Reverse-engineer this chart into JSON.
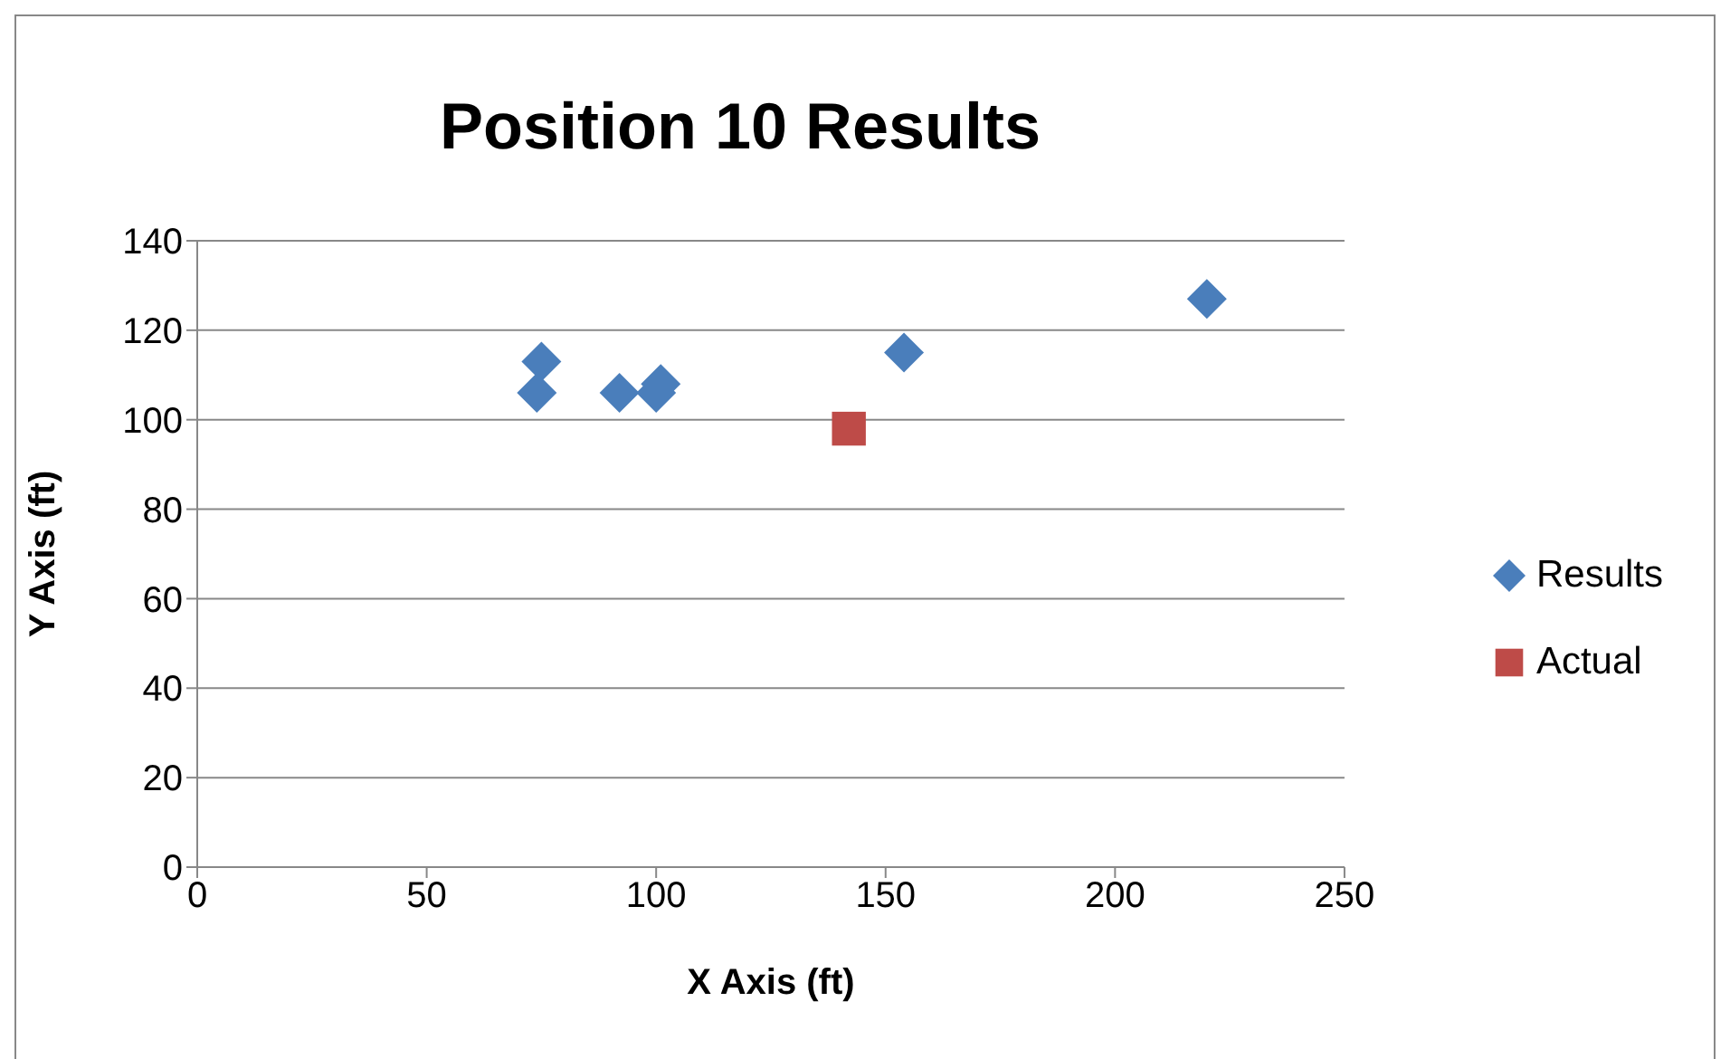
{
  "chart_data": {
    "type": "scatter",
    "title": "Position 10 Results",
    "xlabel": "X Axis (ft)",
    "ylabel": "Y Axis (ft)",
    "xlim": [
      0,
      250
    ],
    "xticks": [
      0,
      50,
      100,
      150,
      200,
      250
    ],
    "ylim": [
      0,
      140
    ],
    "yticks": [
      0,
      20,
      40,
      60,
      80,
      100,
      120,
      140
    ],
    "grid": "y",
    "legend": "right",
    "series": [
      {
        "name": "Results",
        "color": "#4a7ebb",
        "marker": "diamond",
        "x": [
          74,
          75,
          92,
          100,
          101,
          154,
          220
        ],
        "values": [
          106,
          113,
          106,
          106,
          108,
          115,
          127
        ]
      },
      {
        "name": "Actual",
        "color": "#be4b48",
        "marker": "square",
        "x": [
          142
        ],
        "values": [
          98
        ]
      }
    ]
  }
}
